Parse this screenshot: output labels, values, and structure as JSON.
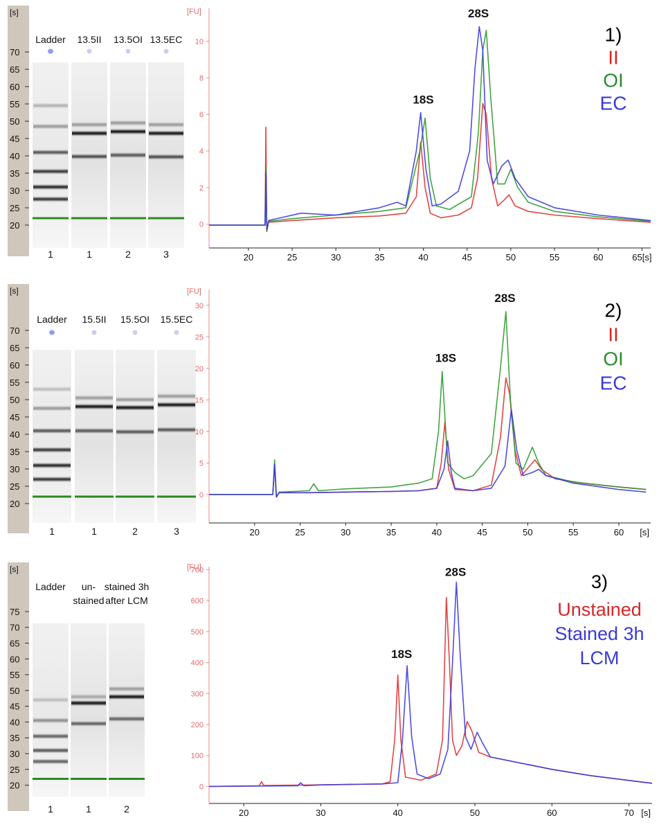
{
  "chart_data": [
    {
      "panel": "1)",
      "type": "gel",
      "axis_unit": "[s]",
      "y_ticks": [
        70,
        65,
        60,
        55,
        50,
        45,
        40,
        35,
        30,
        25,
        20
      ],
      "ylim": [
        17,
        73
      ],
      "lane_labels": [
        "Ladder",
        "13.5II",
        "13.5OI",
        "13.5EC"
      ],
      "lane_numbers": [
        "1",
        "1",
        "2",
        "3"
      ],
      "bands": [
        [
          {
            "y": 54.5,
            "i": 0.25
          },
          {
            "y": 48.5,
            "i": 0.35
          },
          {
            "y": 41,
            "i": 0.65
          },
          {
            "y": 35.5,
            "i": 0.8
          },
          {
            "y": 31,
            "i": 0.85
          },
          {
            "y": 27.5,
            "i": 0.8
          }
        ],
        [
          {
            "y": 49,
            "i": 0.35
          },
          {
            "y": 46.5,
            "i": 0.95
          },
          {
            "y": 39.8,
            "i": 0.7
          }
        ],
        [
          {
            "y": 49.5,
            "i": 0.35
          },
          {
            "y": 47,
            "i": 0.95
          },
          {
            "y": 40.2,
            "i": 0.65
          }
        ],
        [
          {
            "y": 49,
            "i": 0.35
          },
          {
            "y": 46.5,
            "i": 0.95
          },
          {
            "y": 39.7,
            "i": 0.7
          }
        ]
      ],
      "marker_y": 22
    },
    {
      "panel": "1)",
      "type": "line",
      "y_unit": "[FU]",
      "x_unit": "[s]",
      "xlim": [
        15.5,
        66
      ],
      "ylim": [
        -1.3,
        11.8
      ],
      "x_ticks": [
        20,
        25,
        30,
        35,
        40,
        45,
        50,
        55,
        60,
        65
      ],
      "x_tick_labels": [
        "20",
        "25",
        "30",
        "35",
        "40",
        "45",
        "50",
        "55",
        "60",
        "65[s]"
      ],
      "y_ticks": [
        0,
        2,
        4,
        6,
        8,
        10
      ],
      "show_x_unit": false,
      "peak_labels": [
        {
          "text": "18S",
          "x": 40,
          "y": 6.6
        },
        {
          "text": "28S",
          "x": 46.3,
          "y": 11.3
        }
      ],
      "legend": [
        {
          "text": "1)",
          "color": "#000000"
        },
        {
          "text": "II",
          "color": "#d62728"
        },
        {
          "text": "OI",
          "color": "#2e8b2e"
        },
        {
          "text": "EC",
          "color": "#3a3ad6"
        }
      ],
      "legend_font_size": 28,
      "series": [
        {
          "name": "II",
          "color": "#e03030",
          "x": [
            15.5,
            21.9,
            22.0,
            22.1,
            22.3,
            25,
            30,
            35,
            38,
            39.2,
            39.7,
            40.2,
            40.8,
            42,
            44,
            45.5,
            46.2,
            46.8,
            47.2,
            47.8,
            48.5,
            49.2,
            49.8,
            50.5,
            52,
            55,
            60,
            66
          ],
          "y": [
            -0.05,
            -0.05,
            5.3,
            -0.4,
            0.1,
            0.2,
            0.35,
            0.45,
            0.6,
            1.5,
            4.5,
            2.0,
            0.6,
            0.35,
            0.5,
            0.9,
            2.5,
            6.6,
            6.0,
            2.5,
            1.0,
            1.3,
            1.6,
            1.0,
            0.7,
            0.5,
            0.3,
            0.1
          ]
        },
        {
          "name": "OI",
          "color": "#2e9a2e",
          "x": [
            15.5,
            21.9,
            22.0,
            22.1,
            22.3,
            25,
            30,
            35,
            38,
            39.6,
            40.2,
            40.8,
            41.5,
            43,
            45.5,
            46.3,
            46.8,
            47.2,
            47.7,
            48.5,
            49.3,
            50,
            50.8,
            52,
            55,
            60,
            66
          ],
          "y": [
            -0.05,
            -0.05,
            3.2,
            -0.4,
            0.15,
            0.3,
            0.5,
            0.7,
            0.9,
            4.0,
            5.8,
            2.5,
            1.0,
            0.8,
            1.5,
            5.0,
            9.5,
            10.6,
            7.0,
            2.2,
            2.2,
            3.0,
            2.0,
            1.2,
            0.7,
            0.4,
            0.15
          ]
        },
        {
          "name": "EC",
          "color": "#3a3ae0",
          "x": [
            15.5,
            21.9,
            22.0,
            22.1,
            22.3,
            26,
            30,
            35,
            37,
            38,
            39.2,
            39.7,
            40.3,
            41,
            42,
            44,
            45.3,
            45.9,
            46.4,
            46.8,
            47.3,
            48,
            49,
            49.7,
            50.5,
            52,
            55,
            60,
            66
          ],
          "y": [
            -0.05,
            -0.05,
            2.8,
            -0.3,
            0.2,
            0.6,
            0.5,
            0.9,
            1.2,
            1.0,
            4.0,
            6.1,
            3.0,
            1.0,
            1.1,
            1.8,
            4.0,
            8.5,
            10.8,
            9.5,
            3.5,
            2.2,
            3.2,
            3.5,
            2.5,
            1.5,
            0.9,
            0.5,
            0.2
          ]
        }
      ]
    },
    {
      "panel": "2)",
      "type": "gel",
      "axis_unit": "[s]",
      "y_ticks": [
        70,
        65,
        60,
        55,
        50,
        45,
        40,
        35,
        30,
        25,
        20
      ],
      "ylim": [
        17,
        73
      ],
      "lane_labels": [
        "Ladder",
        "15.5II",
        "15.5OI",
        "15.5EC"
      ],
      "lane_numbers": [
        "1",
        "1",
        "2",
        "3"
      ],
      "bands": [
        [
          {
            "y": 53,
            "i": 0.2
          },
          {
            "y": 47.5,
            "i": 0.35
          },
          {
            "y": 41,
            "i": 0.65
          },
          {
            "y": 35.5,
            "i": 0.8
          },
          {
            "y": 31,
            "i": 0.85
          },
          {
            "y": 27,
            "i": 0.8
          }
        ],
        [
          {
            "y": 50.5,
            "i": 0.35
          },
          {
            "y": 48,
            "i": 0.95
          },
          {
            "y": 41,
            "i": 0.65
          }
        ],
        [
          {
            "y": 50,
            "i": 0.35
          },
          {
            "y": 47.7,
            "i": 0.95
          },
          {
            "y": 40.7,
            "i": 0.65
          }
        ],
        [
          {
            "y": 51,
            "i": 0.35
          },
          {
            "y": 48.5,
            "i": 0.95
          },
          {
            "y": 41.3,
            "i": 0.65
          }
        ]
      ],
      "marker_y": 22
    },
    {
      "panel": "2)",
      "type": "line",
      "y_unit": "[FU]",
      "x_unit": "[s]",
      "xlim": [
        15,
        63.5
      ],
      "ylim": [
        -4.5,
        32.5
      ],
      "x_ticks": [
        20,
        25,
        30,
        35,
        40,
        45,
        50,
        55,
        60
      ],
      "x_tick_labels": [
        "20",
        "25",
        "30",
        "35",
        "40",
        "45",
        "50",
        "55",
        "60"
      ],
      "y_ticks": [
        0,
        5,
        10,
        15,
        20,
        25,
        30
      ],
      "show_x_unit": true,
      "peak_labels": [
        {
          "text": "18S",
          "x": 41,
          "y": 21
        },
        {
          "text": "28S",
          "x": 47.5,
          "y": 30.5
        }
      ],
      "legend": [
        {
          "text": "2)",
          "color": "#000000"
        },
        {
          "text": "II",
          "color": "#d62728"
        },
        {
          "text": "OI",
          "color": "#2e8b2e"
        },
        {
          "text": "EC",
          "color": "#3a3ad6"
        }
      ],
      "legend_font_size": 28,
      "series": [
        {
          "name": "II",
          "color": "#e03030",
          "x": [
            15,
            22.0,
            22.2,
            22.4,
            22.7,
            26,
            30,
            35,
            38,
            40,
            40.5,
            40.9,
            41.3,
            42,
            44,
            46,
            47,
            47.6,
            48,
            48.6,
            49.3,
            50.2,
            50.8,
            51.5,
            53,
            56,
            60,
            63
          ],
          "y": [
            0,
            0,
            4.5,
            -0.4,
            0.3,
            0.3,
            0.4,
            0.5,
            0.6,
            1.0,
            5.0,
            11.5,
            4.0,
            0.8,
            0.6,
            1.5,
            9.0,
            18.5,
            16.0,
            7.0,
            3.0,
            4.5,
            5.5,
            4.0,
            2.5,
            1.8,
            1.2,
            0.8
          ]
        },
        {
          "name": "OI",
          "color": "#2e9a2e",
          "x": [
            15,
            22.0,
            22.2,
            22.4,
            22.7,
            26,
            26.5,
            27,
            30,
            35,
            38,
            39.5,
            40.2,
            40.6,
            41.2,
            42,
            43,
            44,
            46,
            47,
            47.6,
            48.1,
            48.7,
            49.5,
            50.5,
            51.2,
            52,
            55,
            60,
            63
          ],
          "y": [
            0,
            0,
            5.5,
            -0.4,
            0.4,
            0.6,
            1.7,
            0.6,
            0.9,
            1.2,
            1.8,
            2.5,
            10.0,
            19.5,
            5.0,
            3.5,
            2.5,
            3.0,
            6.5,
            20.0,
            29.0,
            15.0,
            5.0,
            4.0,
            7.5,
            5.0,
            3.0,
            2.0,
            1.2,
            0.8
          ]
        },
        {
          "name": "EC",
          "color": "#3a3ae0",
          "x": [
            15,
            22.0,
            22.2,
            22.4,
            22.7,
            26,
            30,
            35,
            38,
            40,
            40.8,
            41.2,
            41.6,
            42,
            44,
            46,
            47.5,
            48.2,
            48.8,
            49.5,
            50.5,
            51.2,
            52,
            55,
            60,
            63
          ],
          "y": [
            0,
            0,
            4.8,
            -0.4,
            0.3,
            0.3,
            0.4,
            0.5,
            0.6,
            1.0,
            4.0,
            8.5,
            3.5,
            1.0,
            0.6,
            1.0,
            4.5,
            13.5,
            7.0,
            3.0,
            3.5,
            4.0,
            3.0,
            1.8,
            0.8,
            0.4
          ]
        }
      ]
    },
    {
      "panel": "3)",
      "type": "gel",
      "axis_unit": "[s]",
      "y_ticks": [
        75,
        70,
        65,
        60,
        55,
        50,
        45,
        40,
        35,
        30,
        25,
        20
      ],
      "ylim": [
        17.5,
        78.5
      ],
      "lane_labels": [
        "Ladder",
        "un-stained",
        "stained 3h after LCM"
      ],
      "lane_numbers": [
        "1",
        "1",
        "2"
      ],
      "bands": [
        [
          {
            "y": 47,
            "i": 0.2
          },
          {
            "y": 40.5,
            "i": 0.4
          },
          {
            "y": 35.5,
            "i": 0.6
          },
          {
            "y": 31,
            "i": 0.65
          },
          {
            "y": 27.5,
            "i": 0.6
          }
        ],
        [
          {
            "y": 48,
            "i": 0.3
          },
          {
            "y": 46,
            "i": 0.95
          },
          {
            "y": 39.5,
            "i": 0.6
          }
        ],
        [
          {
            "y": 50.5,
            "i": 0.35
          },
          {
            "y": 48,
            "i": 0.95
          },
          {
            "y": 41,
            "i": 0.6
          }
        ]
      ],
      "marker_y": 22
    },
    {
      "panel": "3)",
      "type": "line",
      "y_unit": "[FU]",
      "x_unit": "[s]",
      "xlim": [
        15.5,
        73
      ],
      "ylim": [
        -55,
        710
      ],
      "x_ticks": [
        20,
        30,
        40,
        50,
        60,
        70
      ],
      "x_tick_labels": [
        "20",
        "30",
        "40",
        "50",
        "60",
        "70"
      ],
      "y_ticks": [
        0,
        100,
        200,
        300,
        400,
        500,
        600,
        700
      ],
      "show_x_unit": true,
      "peak_labels": [
        {
          "text": "18S",
          "x": 40.5,
          "y": 415
        },
        {
          "text": "28S",
          "x": 47.5,
          "y": 680
        }
      ],
      "legend": [
        {
          "text": "3)",
          "color": "#000000"
        },
        {
          "text": "Unstained",
          "color": "#d62728"
        },
        {
          "text": "Stained 3h",
          "color": "#3a3ad6"
        },
        {
          "text": "LCM",
          "color": "#3a3ad6"
        }
      ],
      "legend_font_size": 27,
      "series": [
        {
          "name": "Unstained",
          "color": "#e03030",
          "x": [
            15.5,
            22,
            22.3,
            22.6,
            30,
            38,
            39,
            39.6,
            40,
            40.4,
            41,
            43,
            45,
            45.8,
            46.3,
            46.7,
            47.1,
            47.6,
            48.3,
            49,
            49.6,
            50.5,
            52,
            55,
            60,
            65,
            73
          ],
          "y": [
            0,
            2,
            15,
            3,
            5,
            8,
            15,
            150,
            360,
            150,
            30,
            20,
            40,
            150,
            610,
            400,
            150,
            100,
            130,
            210,
            180,
            110,
            95,
            80,
            55,
            35,
            10
          ]
        },
        {
          "name": "Stained 3h LCM",
          "color": "#3a3ae0",
          "x": [
            15.5,
            27,
            27.4,
            27.8,
            30,
            38,
            40,
            40.6,
            41.2,
            41.8,
            42.5,
            44,
            45.5,
            46.5,
            47.1,
            47.6,
            48.1,
            48.8,
            49.5,
            50.3,
            51,
            52,
            55,
            60,
            65,
            73
          ],
          "y": [
            0,
            2,
            12,
            2,
            5,
            8,
            12,
            150,
            390,
            160,
            40,
            25,
            40,
            120,
            400,
            660,
            420,
            160,
            120,
            175,
            140,
            95,
            80,
            55,
            35,
            10
          ]
        }
      ]
    }
  ]
}
